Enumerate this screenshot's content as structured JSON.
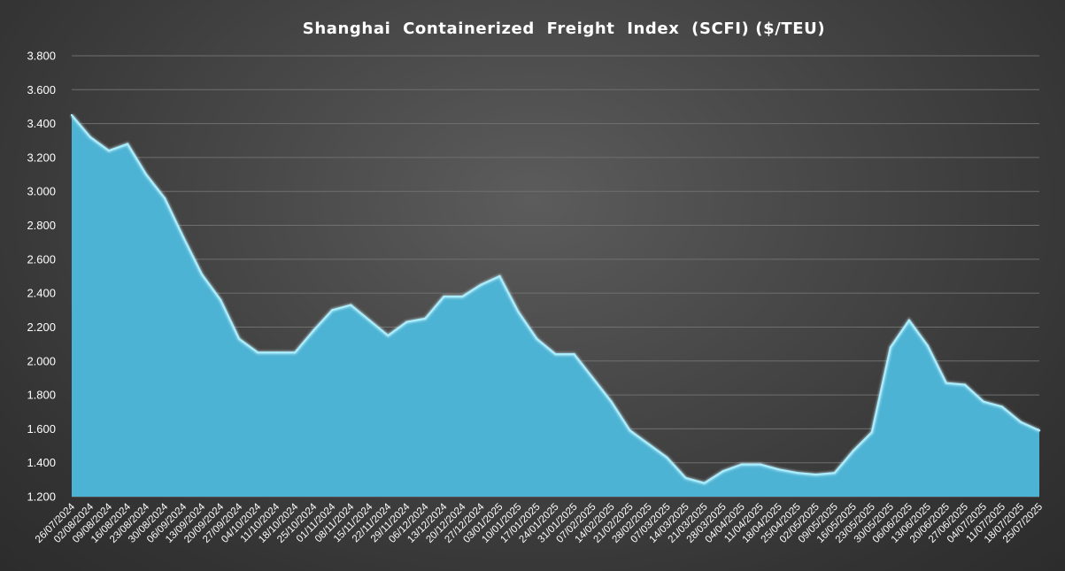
{
  "chart_data": {
    "type": "area",
    "title": "Shanghai  Containerized  Freight  Index  (SCFI) ($/TEU)",
    "xlabel": "",
    "ylabel": "",
    "ylim": [
      1200,
      3800
    ],
    "yticks": [
      1200,
      1400,
      1600,
      1800,
      2000,
      2200,
      2400,
      2600,
      2800,
      3000,
      3200,
      3400,
      3600,
      3800
    ],
    "ytick_labels": [
      "1.200",
      "1.400",
      "1.600",
      "1.800",
      "2.000",
      "2.200",
      "2.400",
      "2.600",
      "2.800",
      "3.000",
      "3.200",
      "3.400",
      "3.600",
      "3.800"
    ],
    "grid": true,
    "colors": {
      "fill": "#4db3d4",
      "line": "#a8eeff"
    },
    "categories": [
      "26/07/2024",
      "02/08/2024",
      "09/08/2024",
      "16/08/2024",
      "23/08/2024",
      "30/08/2024",
      "06/09/2024",
      "13/09/2024",
      "20/09/2024",
      "27/09/2024",
      "04/10/2024",
      "11/10/2024",
      "18/10/2024",
      "25/10/2024",
      "01/11/2024",
      "08/11/2024",
      "15/11/2024",
      "22/11/2024",
      "29/11/2024",
      "06/12/2024",
      "13/12/2024",
      "20/12/2024",
      "27/12/2024",
      "03/01/2025",
      "10/01/2025",
      "17/01/2025",
      "24/01/2025",
      "31/01/2025",
      "07/02/2025",
      "14/02/2025",
      "21/02/2025",
      "28/02/2025",
      "07/03/2025",
      "14/03/2025",
      "21/03/2025",
      "28/03/2025",
      "04/04/2025",
      "11/04/2025",
      "18/04/2025",
      "25/04/2025",
      "02/05/2025",
      "09/05/2025",
      "16/05/2025",
      "23/05/2025",
      "30/05/2025",
      "06/06/2025",
      "13/06/2025",
      "20/06/2025",
      "27/06/2025",
      "04/07/2025",
      "11/07/2025",
      "18/07/2025",
      "25/07/2025"
    ],
    "values": [
      3450,
      3320,
      3240,
      3280,
      3100,
      2960,
      2730,
      2510,
      2360,
      2130,
      2050,
      2050,
      2050,
      2180,
      2300,
      2330,
      2240,
      2150,
      2230,
      2250,
      2380,
      2380,
      2450,
      2500,
      2290,
      2130,
      2040,
      2040,
      1900,
      1760,
      1590,
      1510,
      1430,
      1310,
      1280,
      1350,
      1390,
      1390,
      1360,
      1340,
      1330,
      1340,
      1470,
      1580,
      2080,
      2240,
      2090,
      1870,
      1860,
      1760,
      1730,
      1640,
      1590
    ]
  }
}
